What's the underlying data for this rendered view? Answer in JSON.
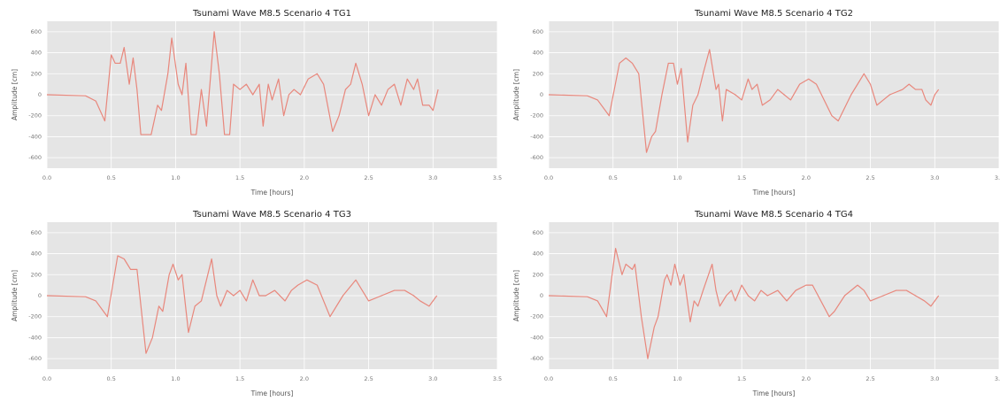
{
  "chart_data": [
    {
      "type": "line",
      "title": "Tsunami Wave M8.5 Scenario 4 TG1",
      "x_label": "Time [hours]",
      "y_label": "Amplitude [cm]",
      "color": "#e8877c",
      "grid": true,
      "xlim": [
        0,
        3.5
      ],
      "ylim": [
        -700,
        700
      ],
      "xticks": [
        {
          "value": 0,
          "label": "0.0"
        },
        0.5,
        {
          "value": 1,
          "label": "1.0"
        },
        1.5,
        {
          "value": 2,
          "label": "2.0"
        },
        2.5,
        {
          "value": 3,
          "label": "3.0"
        },
        3.5
      ],
      "yticks": [
        600,
        400,
        200,
        0,
        -200,
        -400,
        -600
      ],
      "x": [
        0,
        0.3,
        0.38,
        0.45,
        0.5,
        0.53,
        0.57,
        0.6,
        0.64,
        0.67,
        0.7,
        0.73,
        0.81,
        0.86,
        0.89,
        0.94,
        0.97,
        1.02,
        1.05,
        1.08,
        1.12,
        1.16,
        1.2,
        1.24,
        1.3,
        1.34,
        1.38,
        1.42,
        1.45,
        1.5,
        1.55,
        1.6,
        1.65,
        1.68,
        1.72,
        1.75,
        1.8,
        1.84,
        1.88,
        1.92,
        1.97,
        2.03,
        2.1,
        2.15,
        2.22,
        2.27,
        2.32,
        2.36,
        2.4,
        2.45,
        2.5,
        2.55,
        2.6,
        2.65,
        2.7,
        2.75,
        2.8,
        2.85,
        2.88,
        2.92,
        2.97,
        3.0,
        3.04
      ],
      "values": [
        0,
        -10,
        -60,
        -250,
        380,
        300,
        300,
        450,
        100,
        350,
        50,
        -380,
        -380,
        -100,
        -150,
        200,
        540,
        100,
        0,
        300,
        -380,
        -380,
        50,
        -300,
        600,
        200,
        -380,
        -380,
        100,
        50,
        100,
        0,
        100,
        -300,
        100,
        -50,
        150,
        -200,
        0,
        50,
        0,
        150,
        200,
        100,
        -350,
        -200,
        50,
        100,
        300,
        100,
        -200,
        0,
        -100,
        50,
        100,
        -100,
        150,
        50,
        150,
        -100,
        -100,
        -150,
        50
      ]
    },
    {
      "type": "line",
      "title": "Tsunami Wave M8.5 Scenario 4 TG2",
      "x_label": "Time [hours]",
      "y_label": "Amplitude [cm]",
      "color": "#e8877c",
      "grid": true,
      "xlim": [
        0,
        3.5
      ],
      "ylim": [
        -700,
        700
      ],
      "xticks": [
        {
          "value": 0,
          "label": "0.0"
        },
        0.5,
        {
          "value": 1,
          "label": "1.0"
        },
        1.5,
        {
          "value": 2,
          "label": "2.0"
        },
        2.5,
        {
          "value": 3,
          "label": "3.0"
        },
        3.5
      ],
      "yticks": [
        600,
        400,
        200,
        0,
        -200,
        -400,
        -600
      ],
      "x": [
        0,
        0.3,
        0.38,
        0.47,
        0.55,
        0.6,
        0.65,
        0.7,
        0.76,
        0.8,
        0.83,
        0.88,
        0.93,
        0.97,
        1.0,
        1.03,
        1.08,
        1.12,
        1.16,
        1.2,
        1.25,
        1.3,
        1.32,
        1.35,
        1.38,
        1.45,
        1.5,
        1.55,
        1.58,
        1.62,
        1.66,
        1.72,
        1.78,
        1.83,
        1.88,
        1.95,
        2.02,
        2.08,
        2.2,
        2.25,
        2.35,
        2.45,
        2.5,
        2.55,
        2.6,
        2.65,
        2.75,
        2.8,
        2.85,
        2.9,
        2.93,
        2.97,
        3.0,
        3.03
      ],
      "values": [
        0,
        -10,
        -50,
        -200,
        300,
        350,
        300,
        200,
        -550,
        -400,
        -350,
        0,
        300,
        300,
        100,
        250,
        -450,
        -100,
        0,
        200,
        430,
        50,
        100,
        -250,
        50,
        0,
        -50,
        150,
        50,
        100,
        -100,
        -50,
        50,
        0,
        -50,
        100,
        150,
        100,
        -200,
        -250,
        0,
        200,
        100,
        -100,
        -50,
        0,
        50,
        100,
        50,
        50,
        -50,
        -100,
        0,
        50
      ]
    },
    {
      "type": "line",
      "title": "Tsunami Wave M8.5 Scenario 4 TG3",
      "x_label": "Time [hours]",
      "y_label": "Amplitude [cm]",
      "color": "#e8877c",
      "grid": true,
      "xlim": [
        0,
        3.5
      ],
      "ylim": [
        -700,
        700
      ],
      "xticks": [
        {
          "value": 0,
          "label": "0.0"
        },
        0.5,
        {
          "value": 1,
          "label": "1.0"
        },
        1.5,
        {
          "value": 2,
          "label": "2.0"
        },
        2.5,
        {
          "value": 3,
          "label": "3.0"
        },
        3.5
      ],
      "yticks": [
        600,
        400,
        200,
        0,
        -200,
        -400,
        -600
      ],
      "x": [
        0,
        0.3,
        0.38,
        0.47,
        0.55,
        0.6,
        0.65,
        0.7,
        0.77,
        0.82,
        0.87,
        0.9,
        0.95,
        0.98,
        1.02,
        1.05,
        1.1,
        1.15,
        1.2,
        1.28,
        1.32,
        1.35,
        1.4,
        1.45,
        1.5,
        1.55,
        1.6,
        1.65,
        1.7,
        1.77,
        1.85,
        1.9,
        1.95,
        2.02,
        2.1,
        2.2,
        2.3,
        2.4,
        2.45,
        2.5,
        2.6,
        2.7,
        2.78,
        2.85,
        2.9,
        2.97,
        3.03
      ],
      "values": [
        0,
        -10,
        -50,
        -200,
        380,
        350,
        250,
        250,
        -550,
        -400,
        -100,
        -150,
        200,
        300,
        150,
        200,
        -350,
        -100,
        -50,
        350,
        0,
        -100,
        50,
        0,
        50,
        -50,
        150,
        0,
        0,
        50,
        -50,
        50,
        100,
        150,
        100,
        -200,
        0,
        150,
        50,
        -50,
        0,
        50,
        50,
        0,
        -50,
        -100,
        0
      ]
    },
    {
      "type": "line",
      "title": "Tsunami Wave M8.5 Scenario 4 TG4",
      "x_label": "Time [hours]",
      "y_label": "Amplitude [cm]",
      "color": "#e8877c",
      "grid": true,
      "xlim": [
        0,
        3.5
      ],
      "ylim": [
        -700,
        700
      ],
      "xticks": [
        {
          "value": 0,
          "label": "0.0"
        },
        0.5,
        {
          "value": 1,
          "label": "1.0"
        },
        1.5,
        {
          "value": 2,
          "label": "2.0"
        },
        2.5,
        {
          "value": 3,
          "label": "3.0"
        },
        3.5
      ],
      "yticks": [
        600,
        400,
        200,
        0,
        -200,
        -400,
        -600
      ],
      "x": [
        0,
        0.3,
        0.38,
        0.45,
        0.52,
        0.57,
        0.6,
        0.65,
        0.67,
        0.72,
        0.77,
        0.82,
        0.85,
        0.9,
        0.92,
        0.95,
        0.98,
        1.02,
        1.05,
        1.1,
        1.13,
        1.16,
        1.2,
        1.27,
        1.3,
        1.33,
        1.38,
        1.42,
        1.45,
        1.5,
        1.55,
        1.6,
        1.65,
        1.7,
        1.78,
        1.85,
        1.92,
        2.0,
        2.05,
        2.18,
        2.22,
        2.3,
        2.4,
        2.45,
        2.5,
        2.6,
        2.7,
        2.78,
        2.85,
        2.92,
        2.97,
        3.03
      ],
      "values": [
        0,
        -10,
        -50,
        -200,
        450,
        200,
        300,
        250,
        300,
        -200,
        -600,
        -300,
        -200,
        150,
        200,
        100,
        300,
        100,
        200,
        -250,
        -50,
        -100,
        50,
        300,
        50,
        -100,
        0,
        50,
        -50,
        100,
        0,
        -50,
        50,
        0,
        50,
        -50,
        50,
        100,
        100,
        -200,
        -150,
        0,
        100,
        50,
        -50,
        0,
        50,
        50,
        0,
        -50,
        -100,
        0
      ]
    }
  ]
}
